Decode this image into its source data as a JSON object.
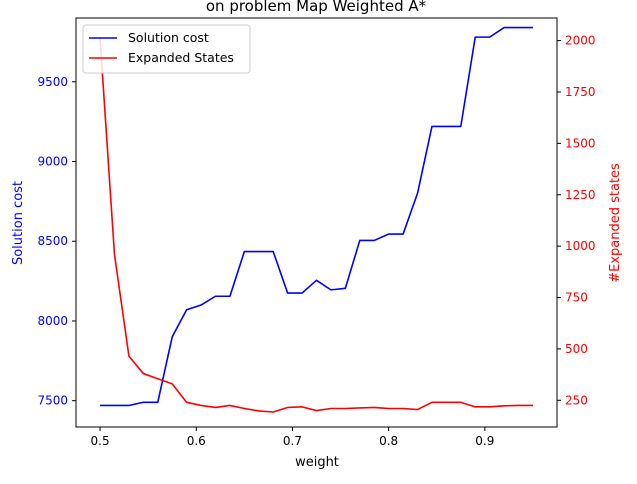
{
  "chart_data": {
    "type": "line",
    "title": "on problem Map Weighted A*",
    "xlabel": "weight",
    "ylabel_left": "Solution cost",
    "ylabel_right": "#Expanded states",
    "xlim": [
      0.475,
      0.975
    ],
    "ylim_left": [
      7335,
      9900
    ],
    "ylim_right": [
      120,
      2110
    ],
    "x_ticks": [
      0.5,
      0.6,
      0.7,
      0.8,
      0.9
    ],
    "y_ticks_left": [
      7500,
      8000,
      8500,
      9000,
      9500
    ],
    "y_ticks_right": [
      250,
      500,
      750,
      1000,
      1250,
      1500,
      1750,
      2000
    ],
    "legend_position": "top-left",
    "grid": false,
    "x": [
      0.5,
      0.515,
      0.53,
      0.545,
      0.56,
      0.575,
      0.59,
      0.605,
      0.62,
      0.635,
      0.65,
      0.665,
      0.68,
      0.695,
      0.71,
      0.725,
      0.74,
      0.755,
      0.77,
      0.785,
      0.8,
      0.815,
      0.83,
      0.845,
      0.86,
      0.875,
      0.89,
      0.905,
      0.92,
      0.935,
      0.95
    ],
    "series": [
      {
        "name": "Solution cost",
        "axis": "left",
        "color": "#0000ff",
        "values": [
          7470,
          7470,
          7470,
          7490,
          7490,
          7900,
          8070,
          8100,
          8155,
          8155,
          8435,
          8435,
          8435,
          8175,
          8175,
          8255,
          8195,
          8205,
          8505,
          8505,
          8545,
          8545,
          8800,
          9220,
          9220,
          9220,
          9780,
          9780,
          9840,
          9840,
          9840
        ]
      },
      {
        "name": "Expanded States",
        "axis": "right",
        "color": "#ff0000",
        "values": [
          2010,
          960,
          465,
          380,
          355,
          330,
          240,
          225,
          215,
          225,
          210,
          198,
          193,
          215,
          218,
          200,
          210,
          210,
          213,
          215,
          210,
          210,
          205,
          240,
          240,
          240,
          218,
          218,
          223,
          225,
          225
        ]
      }
    ]
  }
}
